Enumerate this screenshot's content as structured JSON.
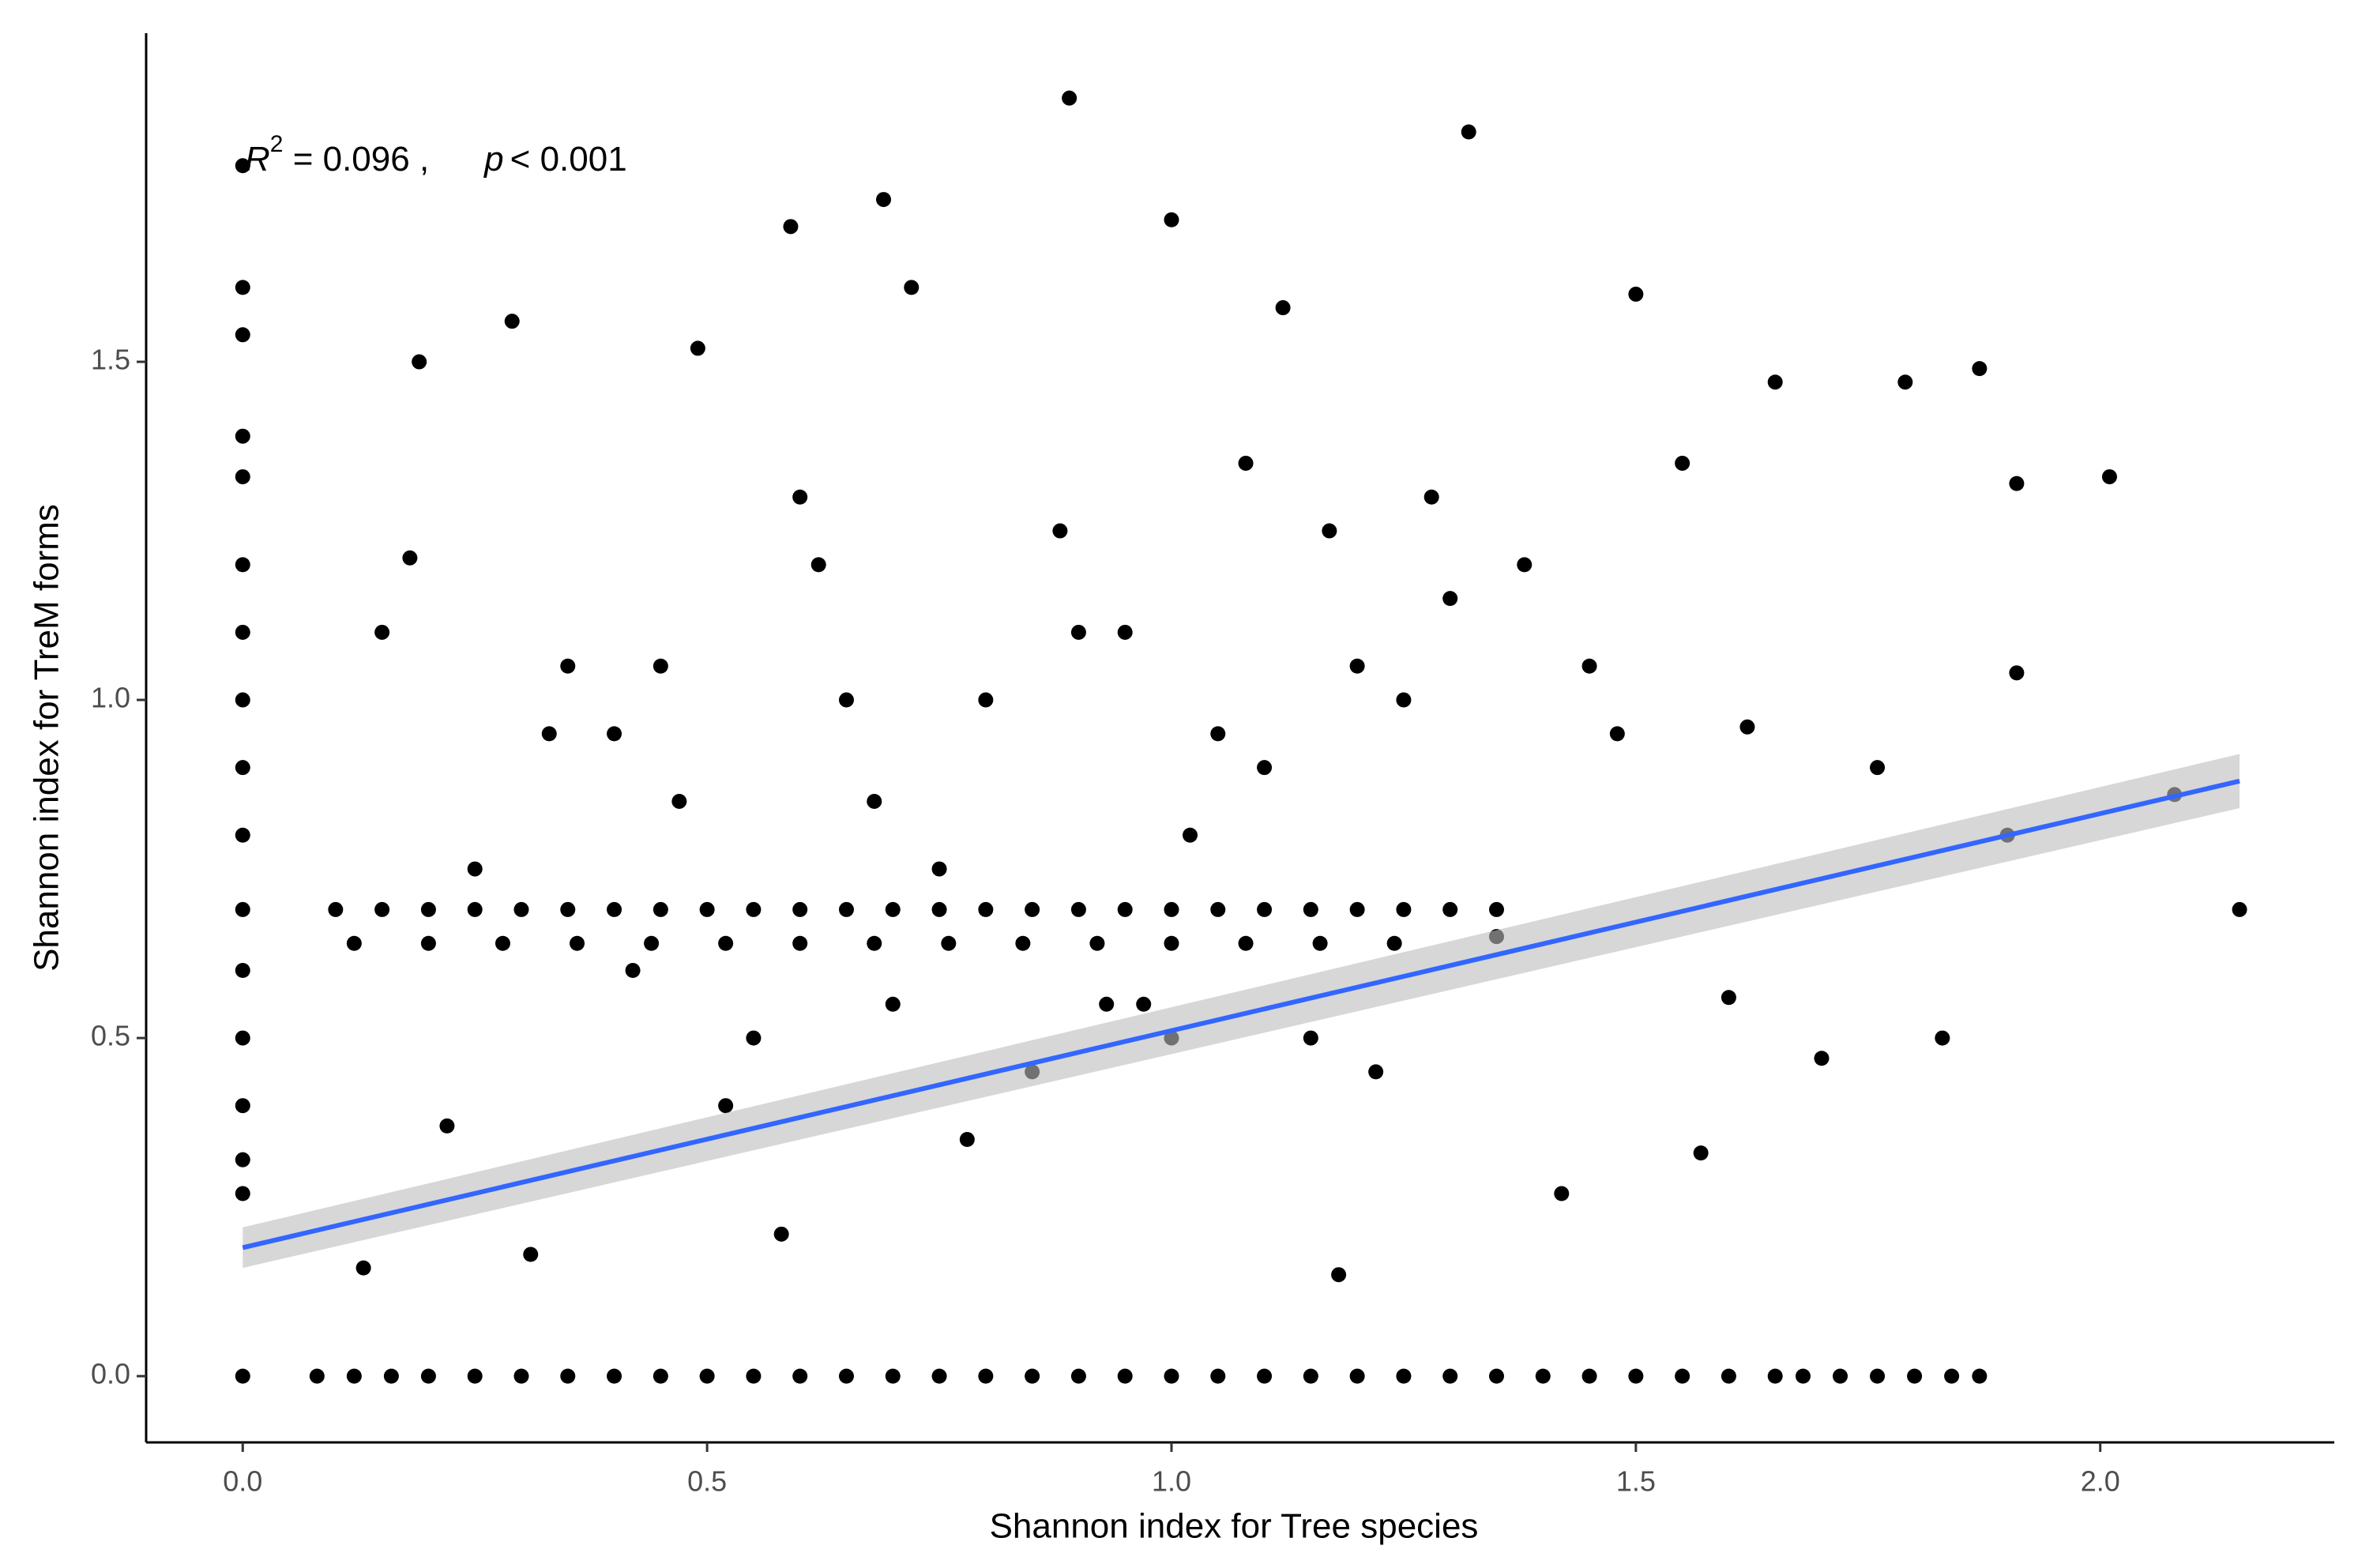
{
  "chart_data": {
    "type": "scatter",
    "xlabel": "Shannon index for Tree species",
    "ylabel": "Shannon index for TreM forms",
    "annotation": {
      "r": "R",
      "sup": "2",
      "r_text": " = 0.096 ,",
      "p": "p",
      "p_text": "< 0.001"
    },
    "xlim": [
      -0.104,
      2.252
    ],
    "ylim": [
      -0.098,
      1.986
    ],
    "xticks": [
      {
        "value": 0,
        "label": "0.0"
      },
      {
        "value": 0.5,
        "label": "0.5"
      },
      {
        "value": 1,
        "label": "1.0"
      },
      {
        "value": 1.5,
        "label": "1.5"
      },
      {
        "value": 2,
        "label": "2.0"
      }
    ],
    "yticks": [
      {
        "value": 0,
        "label": "0.0"
      },
      {
        "value": 0.5,
        "label": "0.5"
      },
      {
        "value": 1,
        "label": "1.0"
      },
      {
        "value": 1.5,
        "label": "1.5"
      }
    ],
    "grid": false,
    "series": [
      {
        "color": "#000000",
        "x": [
          0,
          0,
          0,
          0,
          0,
          0,
          0,
          0,
          0,
          0,
          0,
          0,
          0,
          0,
          0,
          0,
          0,
          0.08,
          0.12,
          0.16,
          0.2,
          0.25,
          0.3,
          0.35,
          0.4,
          0.45,
          0.5,
          0.55,
          0.6,
          0.65,
          0.7,
          0.75,
          0.8,
          0.85,
          0.9,
          0.95,
          1.0,
          1.05,
          1.1,
          1.15,
          1.2,
          1.25,
          1.3,
          1.35,
          1.4,
          1.45,
          1.5,
          1.55,
          1.6,
          1.65,
          1.68,
          1.72,
          1.76,
          1.8,
          1.84,
          1.87,
          0.1,
          0.15,
          0.2,
          0.25,
          0.3,
          0.35,
          0.4,
          0.45,
          0.5,
          0.55,
          0.6,
          0.65,
          0.7,
          0.75,
          0.8,
          0.85,
          0.9,
          0.95,
          1.0,
          1.05,
          1.1,
          1.15,
          1.2,
          1.25,
          1.3,
          1.35,
          0.12,
          0.2,
          0.28,
          0.36,
          0.44,
          0.52,
          0.6,
          0.68,
          0.76,
          0.84,
          0.92,
          1.0,
          1.08,
          1.16,
          1.24,
          0.89,
          1.32,
          0.69,
          1.0,
          0.59,
          2.01,
          2.15,
          2.08,
          1.91,
          1.91,
          1.18,
          0.13,
          0.31,
          0.58,
          1.87,
          1.79,
          1.57,
          1.42,
          0.29,
          0.19,
          0.49,
          0.72,
          1.12,
          1.5,
          1.65,
          1.76,
          1.83,
          0.45,
          0.62,
          0.8,
          0.95,
          1.05,
          1.2,
          1.3,
          0.55,
          0.7,
          0.85,
          1.0,
          1.15,
          0.35,
          0.4,
          0.65,
          0.9,
          1.1,
          1.25,
          1.45,
          0.25,
          0.52,
          0.78,
          1.02,
          1.38,
          1.6,
          0.18,
          0.33,
          0.6,
          0.88,
          1.08,
          1.28,
          1.48,
          1.7,
          0.22,
          0.47,
          0.75,
          0.97,
          1.22,
          1.55,
          0.15,
          0.42,
          0.68,
          0.93,
          1.17,
          1.35,
          1.62,
          1.9
        ],
        "y": [
          0,
          0.27,
          0.32,
          0.4,
          0.5,
          0.6,
          0.69,
          0.8,
          0.9,
          1.0,
          1.1,
          1.2,
          1.33,
          1.39,
          1.54,
          1.61,
          1.79,
          0,
          0,
          0,
          0,
          0,
          0,
          0,
          0,
          0,
          0,
          0,
          0,
          0,
          0,
          0,
          0,
          0,
          0,
          0,
          0,
          0,
          0,
          0,
          0,
          0,
          0,
          0,
          0,
          0,
          0,
          0,
          0,
          0,
          0,
          0,
          0,
          0,
          0,
          0,
          0.69,
          0.69,
          0.69,
          0.69,
          0.69,
          0.69,
          0.69,
          0.69,
          0.69,
          0.69,
          0.69,
          0.69,
          0.69,
          0.69,
          0.69,
          0.69,
          0.69,
          0.69,
          0.69,
          0.69,
          0.69,
          0.69,
          0.69,
          0.69,
          0.69,
          0.69,
          0.64,
          0.64,
          0.64,
          0.64,
          0.64,
          0.64,
          0.64,
          0.64,
          0.64,
          0.64,
          0.64,
          0.64,
          0.64,
          0.64,
          0.64,
          1.89,
          1.84,
          1.74,
          1.71,
          1.7,
          1.33,
          0.69,
          0.86,
          1.32,
          1.04,
          0.15,
          0.16,
          0.18,
          0.21,
          1.49,
          1.47,
          0.33,
          0.27,
          1.56,
          1.5,
          1.52,
          1.61,
          1.58,
          1.6,
          1.47,
          0.9,
          0.5,
          1.05,
          1.2,
          1.0,
          1.1,
          0.95,
          1.05,
          1.15,
          0.5,
          0.55,
          0.45,
          0.5,
          0.5,
          1.05,
          0.95,
          1.0,
          1.1,
          0.9,
          1.0,
          1.05,
          0.75,
          0.4,
          0.35,
          0.8,
          1.2,
          0.56,
          1.21,
          0.95,
          1.3,
          1.25,
          1.35,
          1.3,
          0.95,
          0.47,
          0.37,
          0.85,
          0.75,
          0.55,
          0.45,
          1.35,
          1.1,
          0.6,
          0.85,
          0.55,
          1.25,
          0.65,
          0.96,
          0.8
        ]
      }
    ],
    "fit": {
      "color": "#3366ff",
      "band_color": "#bdbdbd",
      "x": [
        0,
        2.15
      ],
      "y": [
        0.19,
        0.88
      ],
      "lower": [
        0.16,
        0.84
      ],
      "upper": [
        0.22,
        0.92
      ]
    }
  }
}
